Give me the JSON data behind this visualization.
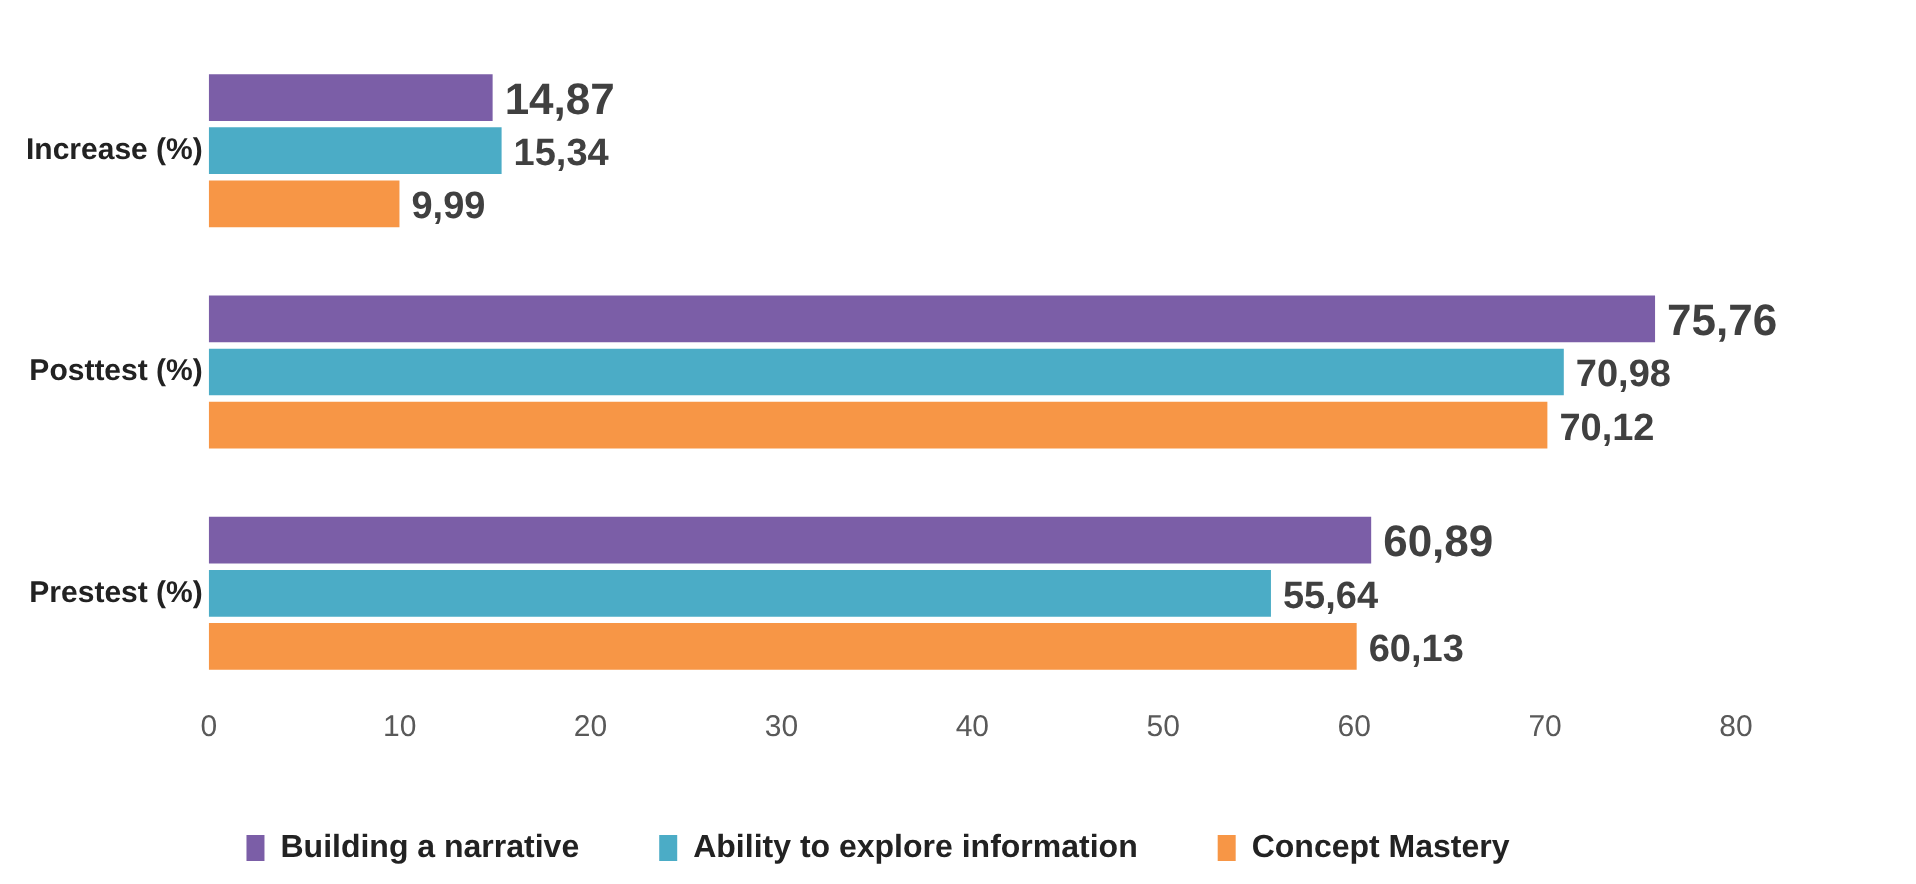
{
  "chart_data": {
    "type": "bar",
    "orientation": "horizontal",
    "categories": [
      "Increase (%)",
      "Posttest (%)",
      "Prestest (%)"
    ],
    "series": [
      {
        "name": "Building a narrative",
        "color": "#7b5ea7",
        "values": [
          14.87,
          75.76,
          60.89
        ],
        "value_labels": [
          "14,87",
          "75,76",
          "60,89"
        ]
      },
      {
        "name": "Ability to explore information",
        "color": "#4bacc6",
        "values": [
          15.34,
          70.98,
          55.64
        ],
        "value_labels": [
          "15,34",
          "70,98",
          "55,64"
        ]
      },
      {
        "name": "Concept Mastery",
        "color": "#f79646",
        "values": [
          9.99,
          70.12,
          60.13
        ],
        "value_labels": [
          "9,99",
          "70,12",
          "60,13"
        ]
      }
    ],
    "xlim": [
      0,
      80
    ],
    "xticks": [
      0,
      10,
      20,
      30,
      40,
      50,
      60,
      70,
      80
    ],
    "grid": false,
    "legend": "bottom"
  }
}
